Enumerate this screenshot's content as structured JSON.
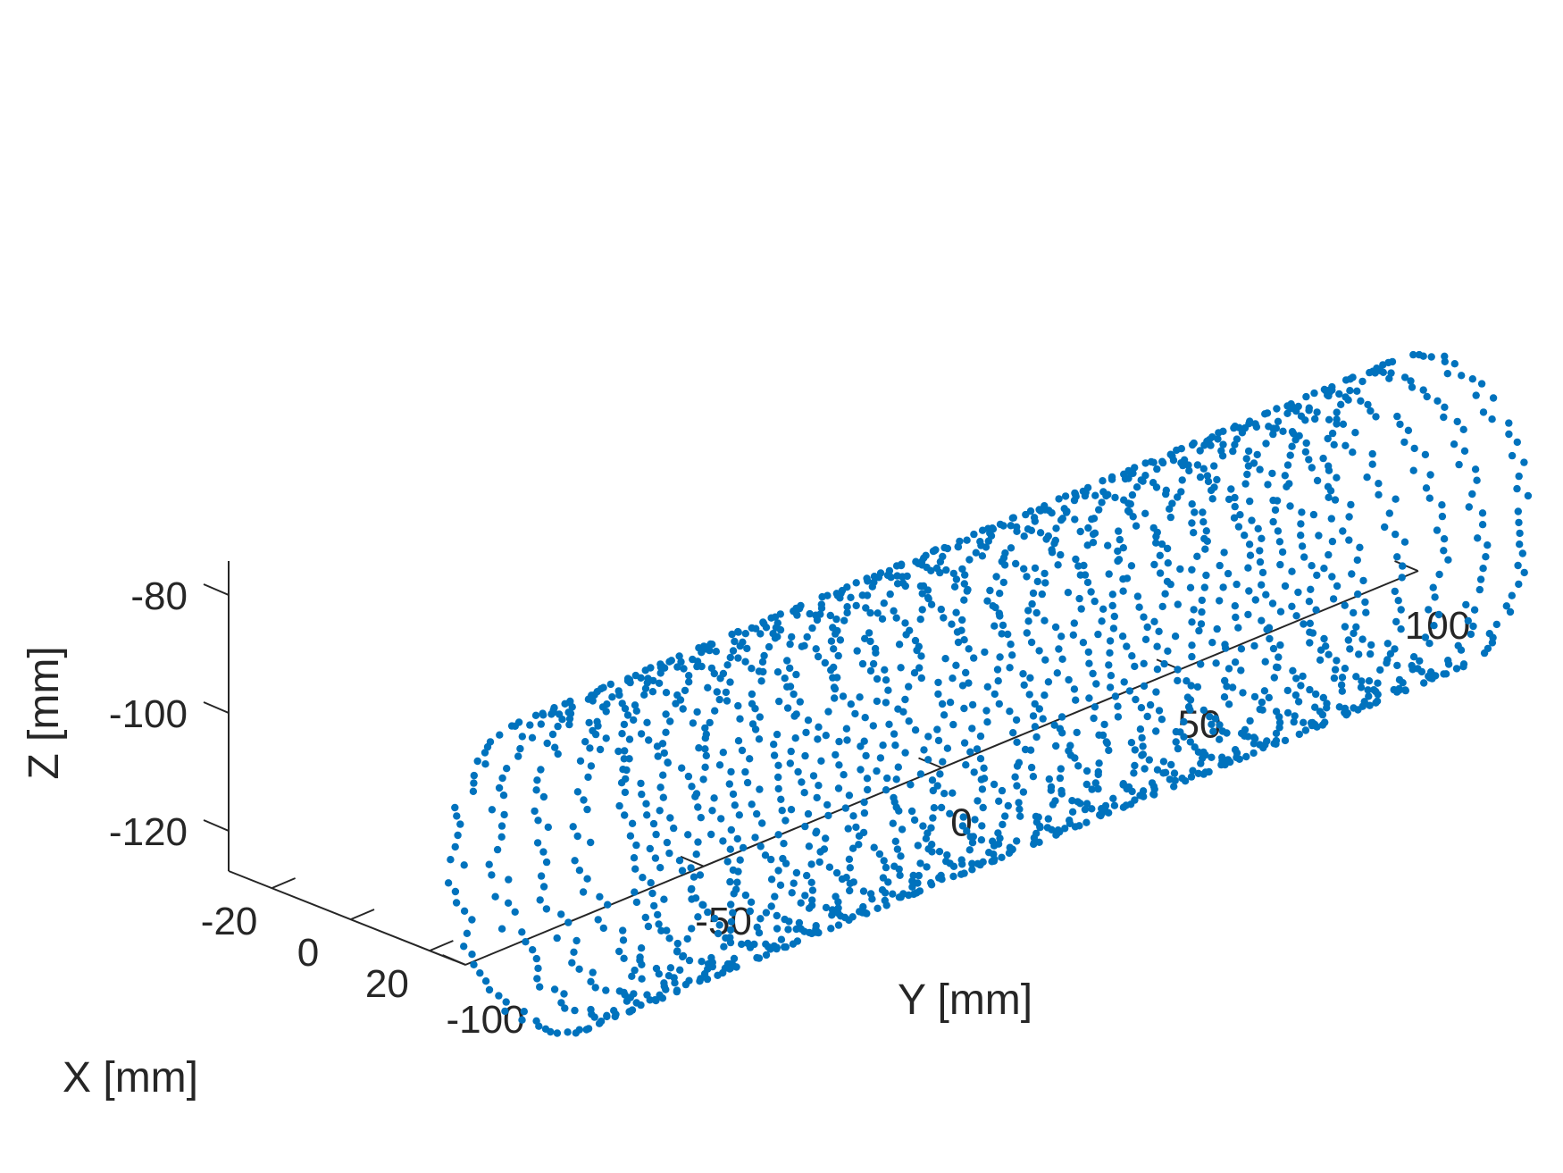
{
  "chart_data": {
    "type": "scatter3d",
    "title": "",
    "xlabel": "X  [mm]",
    "ylabel": "Y  [mm]",
    "zlabel": "Z  [mm]",
    "xlim": [
      -30,
      30
    ],
    "ylim": [
      -100,
      100
    ],
    "zlim": [
      -125,
      -78
    ],
    "x_ticks": [
      -20,
      0,
      20
    ],
    "x_tick_labels": [
      "-20",
      "0",
      "20"
    ],
    "y_ticks": [
      -100,
      -50,
      0,
      50,
      100
    ],
    "y_tick_labels": [
      "-100",
      "-50",
      "0",
      "50",
      "100"
    ],
    "z_ticks": [
      -80,
      -100,
      -120
    ],
    "z_tick_labels": [
      "-80",
      "-100",
      "-120"
    ],
    "grid": false,
    "legend": "none",
    "marker_color": "#0072BD",
    "series": [
      {
        "shape": "cylinder point cloud",
        "axis": "Y",
        "center_x": 0,
        "center_z": -100,
        "radius": 25,
        "y_range": [
          -82,
          100
        ],
        "rings": 22,
        "points_per_ring": 90
      }
    ]
  }
}
